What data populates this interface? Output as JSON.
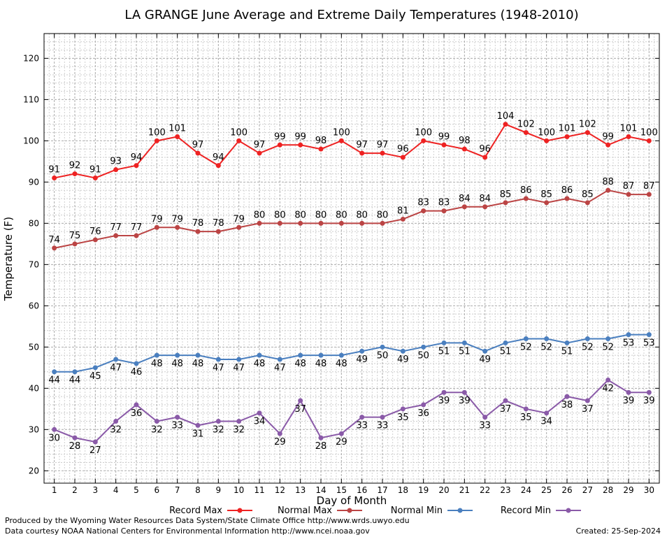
{
  "chart_data": {
    "type": "line",
    "title": "LA GRANGE June Average and Extreme Daily Temperatures (1948-2010)",
    "xlabel": "Day of Month",
    "ylabel": "Temperature (F)",
    "x": [
      1,
      2,
      3,
      4,
      5,
      6,
      7,
      8,
      9,
      10,
      11,
      12,
      13,
      14,
      15,
      16,
      17,
      18,
      19,
      20,
      21,
      22,
      23,
      24,
      25,
      26,
      27,
      28,
      29,
      30
    ],
    "xlim": [
      0.5,
      30.5
    ],
    "ylim": [
      17,
      126
    ],
    "yticks": [
      20,
      30,
      40,
      50,
      60,
      70,
      80,
      90,
      100,
      110,
      120
    ],
    "grid": true,
    "legend_position": "bottom",
    "series": [
      {
        "name": "Record Max",
        "color": "#ee2222",
        "values": [
          91,
          92,
          91,
          93,
          94,
          100,
          101,
          97,
          94,
          100,
          97,
          99,
          99,
          98,
          100,
          97,
          97,
          96,
          100,
          99,
          98,
          96,
          104,
          102,
          100,
          101,
          102,
          99,
          101,
          100
        ]
      },
      {
        "name": "Normal Max",
        "color": "#bb4444",
        "values": [
          74,
          75,
          76,
          77,
          77,
          79,
          79,
          78,
          78,
          79,
          80,
          80,
          80,
          80,
          80,
          80,
          80,
          81,
          83,
          83,
          84,
          84,
          85,
          86,
          85,
          86,
          85,
          88,
          87,
          87
        ]
      },
      {
        "name": "Normal Min",
        "color": "#4a7fbf",
        "values": [
          44,
          44,
          45,
          47,
          46,
          48,
          48,
          48,
          47,
          47,
          48,
          47,
          48,
          48,
          48,
          49,
          50,
          49,
          50,
          51,
          51,
          49,
          51,
          52,
          52,
          51,
          52,
          52,
          53,
          53
        ]
      },
      {
        "name": "Record Min",
        "color": "#8a5aa8",
        "values": [
          30,
          28,
          27,
          32,
          36,
          32,
          33,
          31,
          32,
          32,
          34,
          29,
          37,
          28,
          29,
          33,
          33,
          35,
          36,
          39,
          39,
          33,
          37,
          35,
          34,
          38,
          37,
          42,
          39,
          39
        ]
      }
    ]
  },
  "footer": {
    "produced_by": "Produced by the Wyoming Water Resources Data System/State Climate Office http://www.wrds.uwyo.edu",
    "data_courtesy": "Data courtesy NOAA National Centers for Environmental Information http://www.ncei.noaa.gov",
    "created": "Created: 25-Sep-2024"
  }
}
